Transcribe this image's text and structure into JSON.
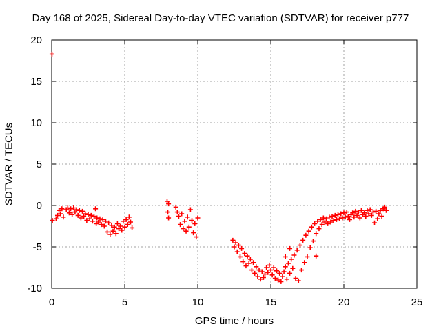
{
  "chart_data": {
    "type": "scatter",
    "title": "Day 168 of 2025, Sidereal Day-to-day VTEC variation (SDTVAR) for receiver p777",
    "xlabel": "GPS time / hours",
    "ylabel": "SDTVAR / TECUs",
    "xlim": [
      0,
      25
    ],
    "ylim": [
      -10,
      20
    ],
    "xticks": [
      0,
      5,
      10,
      15,
      20,
      25
    ],
    "yticks": [
      -10,
      -5,
      0,
      5,
      10,
      15,
      20
    ],
    "grid": true,
    "marker": "+",
    "color": "#ff0000",
    "series": [
      {
        "name": "SDTVAR",
        "points": [
          [
            0.02,
            18.3
          ],
          [
            0.05,
            -1.8
          ],
          [
            0.3,
            -1.6
          ],
          [
            0.4,
            -1.2
          ],
          [
            0.5,
            -0.6
          ],
          [
            0.6,
            -1.0
          ],
          [
            0.7,
            -0.4
          ],
          [
            0.8,
            -1.4
          ],
          [
            1.0,
            -0.5
          ],
          [
            1.1,
            -0.3
          ],
          [
            1.2,
            -0.9
          ],
          [
            1.3,
            -0.4
          ],
          [
            1.4,
            -1.1
          ],
          [
            1.5,
            -0.3
          ],
          [
            1.6,
            -0.8
          ],
          [
            1.7,
            -0.5
          ],
          [
            1.8,
            -1.2
          ],
          [
            1.9,
            -0.6
          ],
          [
            2.0,
            -1.5
          ],
          [
            2.1,
            -0.7
          ],
          [
            2.2,
            -1.3
          ],
          [
            2.3,
            -1.0
          ],
          [
            2.4,
            -1.8
          ],
          [
            2.5,
            -1.1
          ],
          [
            2.6,
            -1.6
          ],
          [
            2.7,
            -1.2
          ],
          [
            2.8,
            -1.9
          ],
          [
            2.9,
            -1.3
          ],
          [
            3.0,
            -0.4
          ],
          [
            3.05,
            -2.2
          ],
          [
            3.1,
            -1.5
          ],
          [
            3.2,
            -2.0
          ],
          [
            3.3,
            -1.6
          ],
          [
            3.4,
            -2.3
          ],
          [
            3.5,
            -1.7
          ],
          [
            3.6,
            -2.5
          ],
          [
            3.7,
            -1.9
          ],
          [
            3.8,
            -3.2
          ],
          [
            3.9,
            -2.1
          ],
          [
            4.0,
            -3.5
          ],
          [
            4.1,
            -2.4
          ],
          [
            4.2,
            -3.1
          ],
          [
            4.3,
            -2.6
          ],
          [
            4.4,
            -3.4
          ],
          [
            4.5,
            -2.2
          ],
          [
            4.6,
            -2.8
          ],
          [
            4.7,
            -2.5
          ],
          [
            4.8,
            -3.0
          ],
          [
            4.9,
            -1.9
          ],
          [
            5.0,
            -2.6
          ],
          [
            5.1,
            -1.7
          ],
          [
            5.2,
            -2.3
          ],
          [
            5.3,
            -1.4
          ],
          [
            5.4,
            -2.0
          ],
          [
            5.5,
            -2.7
          ],
          [
            7.9,
            0.5
          ],
          [
            8.0,
            0.2
          ],
          [
            7.95,
            -0.8
          ],
          [
            8.0,
            -1.5
          ],
          [
            8.5,
            -0.2
          ],
          [
            8.6,
            -0.8
          ],
          [
            8.7,
            -1.3
          ],
          [
            8.8,
            -2.3
          ],
          [
            8.9,
            -1.0
          ],
          [
            9.0,
            -2.8
          ],
          [
            9.1,
            -1.9
          ],
          [
            9.2,
            -3.1
          ],
          [
            9.3,
            -1.4
          ],
          [
            9.4,
            -2.6
          ],
          [
            9.5,
            -0.5
          ],
          [
            9.6,
            -1.8
          ],
          [
            9.7,
            -3.3
          ],
          [
            9.8,
            -2.2
          ],
          [
            9.9,
            -3.8
          ],
          [
            10.0,
            -1.5
          ],
          [
            12.4,
            -4.2
          ],
          [
            12.5,
            -5.0
          ],
          [
            12.6,
            -4.5
          ],
          [
            12.7,
            -5.6
          ],
          [
            12.8,
            -4.8
          ],
          [
            12.9,
            -6.2
          ],
          [
            13.0,
            -5.2
          ],
          [
            13.1,
            -6.8
          ],
          [
            13.2,
            -5.8
          ],
          [
            13.3,
            -7.3
          ],
          [
            13.4,
            -6.1
          ],
          [
            13.5,
            -7.0
          ],
          [
            13.6,
            -6.5
          ],
          [
            13.7,
            -7.8
          ],
          [
            13.8,
            -6.9
          ],
          [
            13.9,
            -8.2
          ],
          [
            14.0,
            -7.4
          ],
          [
            14.1,
            -8.6
          ],
          [
            14.2,
            -7.8
          ],
          [
            14.3,
            -8.9
          ],
          [
            14.4,
            -8.0
          ],
          [
            14.5,
            -8.7
          ],
          [
            14.6,
            -8.3
          ],
          [
            14.7,
            -7.5
          ],
          [
            14.8,
            -8.1
          ],
          [
            14.9,
            -7.2
          ],
          [
            15.0,
            -7.8
          ],
          [
            15.1,
            -8.4
          ],
          [
            15.2,
            -7.5
          ],
          [
            15.3,
            -8.8
          ],
          [
            15.4,
            -7.9
          ],
          [
            15.5,
            -9.0
          ],
          [
            15.6,
            -8.2
          ],
          [
            15.7,
            -9.2
          ],
          [
            15.8,
            -8.6
          ],
          [
            15.9,
            -8.0
          ],
          [
            16.0,
            -7.4
          ],
          [
            16.1,
            -8.9
          ],
          [
            16.2,
            -7.0
          ],
          [
            16.3,
            -8.2
          ],
          [
            16.4,
            -6.5
          ],
          [
            16.5,
            -7.6
          ],
          [
            16.6,
            -6.0
          ],
          [
            16.7,
            -8.8
          ],
          [
            16.8,
            -5.4
          ],
          [
            16.9,
            -9.1
          ],
          [
            17.0,
            -4.8
          ],
          [
            17.1,
            -7.8
          ],
          [
            17.2,
            -4.2
          ],
          [
            17.3,
            -6.9
          ],
          [
            17.4,
            -3.6
          ],
          [
            17.5,
            -6.2
          ],
          [
            17.6,
            -3.1
          ],
          [
            17.7,
            -5.1
          ],
          [
            17.8,
            -2.6
          ],
          [
            17.9,
            -4.3
          ],
          [
            18.0,
            -2.2
          ],
          [
            18.1,
            -3.4
          ],
          [
            18.2,
            -1.9
          ],
          [
            18.3,
            -2.8
          ],
          [
            18.4,
            -1.7
          ],
          [
            18.5,
            -2.3
          ],
          [
            18.6,
            -1.5
          ],
          [
            18.7,
            -2.0
          ],
          [
            18.8,
            -1.6
          ],
          [
            18.9,
            -2.2
          ],
          [
            19.0,
            -1.4
          ],
          [
            19.1,
            -2.0
          ],
          [
            19.2,
            -1.3
          ],
          [
            19.3,
            -1.8
          ],
          [
            19.4,
            -1.2
          ],
          [
            19.5,
            -1.7
          ],
          [
            19.6,
            -1.1
          ],
          [
            19.7,
            -1.6
          ],
          [
            19.8,
            -1.0
          ],
          [
            19.9,
            -1.5
          ],
          [
            20.0,
            -0.9
          ],
          [
            20.1,
            -1.4
          ],
          [
            20.2,
            -0.8
          ],
          [
            20.3,
            -1.3
          ],
          [
            20.4,
            -1.7
          ],
          [
            20.5,
            -1.1
          ],
          [
            20.6,
            -0.9
          ],
          [
            20.7,
            -1.4
          ],
          [
            20.8,
            -0.7
          ],
          [
            20.9,
            -1.2
          ],
          [
            21.0,
            -0.8
          ],
          [
            21.1,
            -1.5
          ],
          [
            21.2,
            -0.6
          ],
          [
            21.3,
            -1.1
          ],
          [
            21.4,
            -0.9
          ],
          [
            21.5,
            -1.3
          ],
          [
            21.6,
            -0.6
          ],
          [
            21.7,
            -1.0
          ],
          [
            21.8,
            -0.5
          ],
          [
            21.9,
            -1.2
          ],
          [
            22.0,
            -0.8
          ],
          [
            22.1,
            -2.1
          ],
          [
            22.2,
            -0.7
          ],
          [
            22.3,
            -1.6
          ],
          [
            22.4,
            -1.0
          ],
          [
            22.5,
            -0.6
          ],
          [
            22.6,
            -1.3
          ],
          [
            22.7,
            -0.4
          ],
          [
            22.8,
            -0.2
          ],
          [
            22.9,
            -0.6
          ],
          [
            16.0,
            -6.2
          ],
          [
            16.3,
            -5.2
          ],
          [
            18.1,
            -6.1
          ]
        ]
      }
    ]
  }
}
